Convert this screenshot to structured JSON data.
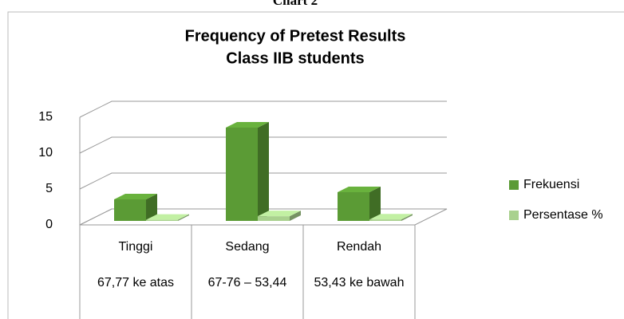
{
  "chart_data": {
    "type": "bar3d",
    "caption": "Chart 2",
    "title": "Frequency of Pretest Results",
    "subtitle": "Class IIB students",
    "categories": [
      "Tinggi",
      "Sedang",
      "Rendah"
    ],
    "category_details": [
      "67,77 ke atas",
      "67-76 – 53,44",
      "53,43 ke bawah"
    ],
    "series": [
      {
        "name": "Frekuensi",
        "color": "#5b9b35",
        "values": [
          3,
          13,
          4
        ]
      },
      {
        "name": "Persentase %",
        "color": "#a9d18e",
        "values": [
          0.15,
          0.65,
          0.2
        ]
      }
    ],
    "ylim": [
      0,
      15
    ],
    "yticks": [
      0,
      5,
      10,
      15
    ],
    "grid": true,
    "legend": "right"
  }
}
